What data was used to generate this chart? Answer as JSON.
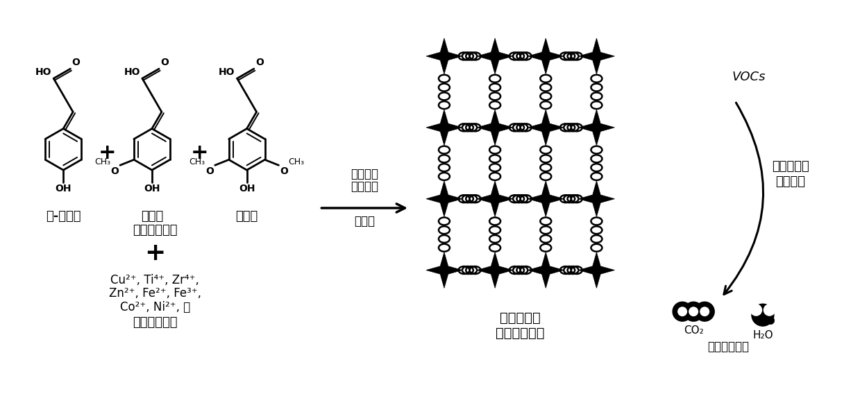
{
  "bg_color": "#ffffff",
  "compound1_name": "对-香豆酸",
  "compound2_name": "松柏酸",
  "compound3_name": "芥子酸",
  "organic_ligand_label": "（有机配体）",
  "metal_ions_label": "（金属离子）",
  "process_line1": "连续流动",
  "process_line2": "生产技术",
  "process_line3": "自组装",
  "mof_label1": "有序纳米孔",
  "mof_label2": "废气处理材料",
  "vocs_label": "VOCs",
  "adsorb_label1": "吸附并原位",
  "adsorb_label2": "催化转化",
  "co2_label": "CO₂",
  "h2o_label": "H₂O",
  "harmless_label": "无害气体分子",
  "metal_line1": "Cu²⁺, Ti⁴⁺, Zr⁴⁺,",
  "metal_line2": "Zn²⁺, Fe²⁺, Fe³⁺,",
  "metal_line3": "Co²⁺, Ni²⁺, 等"
}
